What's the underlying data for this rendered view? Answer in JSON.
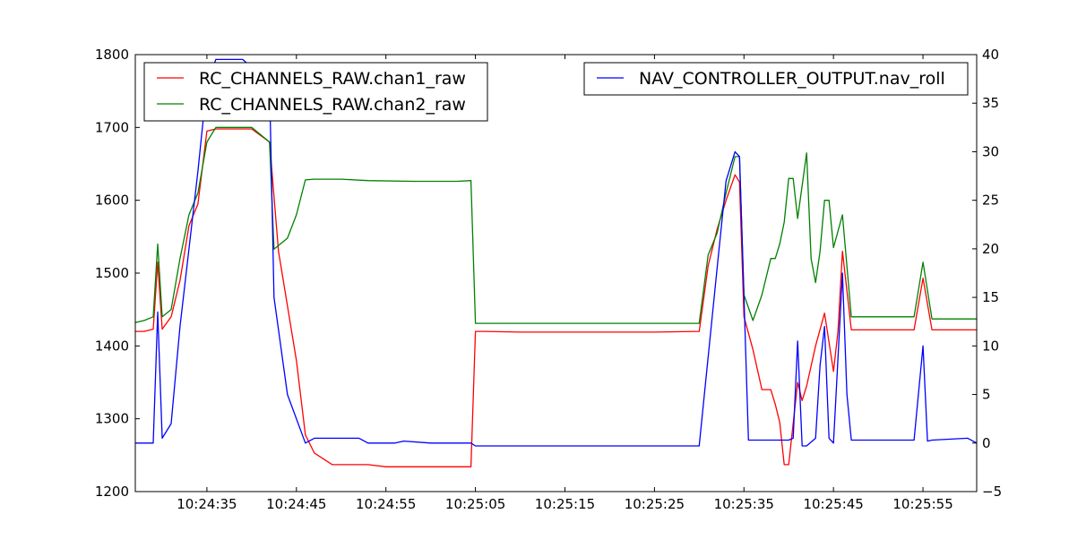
{
  "chart_data": {
    "type": "line",
    "title": "",
    "xlabel": "",
    "ylabel": "",
    "y2label": "",
    "xlim": [
      "10:24:27",
      "10:26:01"
    ],
    "ylim": [
      1200,
      1800
    ],
    "y2lim": [
      -5,
      40
    ],
    "x_ticks": [
      "10:24:35",
      "10:24:45",
      "10:24:55",
      "10:25:05",
      "10:25:15",
      "10:25:25",
      "10:25:35",
      "10:25:45",
      "10:25:55"
    ],
    "y_ticks": [
      "1200",
      "1300",
      "1400",
      "1500",
      "1600",
      "1700",
      "1800"
    ],
    "y2_ticks": [
      "−5",
      "0",
      "5",
      "10",
      "15",
      "20",
      "25",
      "30",
      "35",
      "40"
    ],
    "legend_left_placement": "upper-left",
    "legend_right_placement": "upper-right",
    "series": [
      {
        "name": "RC_CHANNELS_RAW.chan1_raw",
        "axis": "left",
        "color": "#ff0000",
        "x": [
          "10:24:27",
          "10:24:28",
          "10:24:29",
          "10:24:29.5",
          "10:24:30",
          "10:24:31",
          "10:24:32",
          "10:24:33",
          "10:24:34",
          "10:24:35",
          "10:24:36",
          "10:24:37",
          "10:24:40",
          "10:24:42",
          "10:24:43",
          "10:24:45",
          "10:24:46",
          "10:24:47",
          "10:24:49",
          "10:24:51",
          "10:24:53",
          "10:24:55",
          "10:24:57",
          "10:24:59",
          "10:25:01",
          "10:25:03",
          "10:25:04.5",
          "10:25:05",
          "10:25:06",
          "10:25:10",
          "10:25:15",
          "10:25:20",
          "10:25:25",
          "10:25:30",
          "10:25:31",
          "10:25:32",
          "10:25:33",
          "10:25:34",
          "10:25:34.5",
          "10:25:35",
          "10:25:36",
          "10:25:37",
          "10:25:38",
          "10:25:38.5",
          "10:25:39",
          "10:25:39.5",
          "10:25:40",
          "10:25:41",
          "10:25:41.5",
          "10:25:42",
          "10:25:43",
          "10:25:44",
          "10:25:45",
          "10:25:45.5",
          "10:25:46",
          "10:25:47",
          "10:25:50",
          "10:25:54",
          "10:25:55",
          "10:25:56",
          "10:26:01"
        ],
        "y": [
          1420,
          1420,
          1423,
          1515,
          1423,
          1440,
          1490,
          1565,
          1595,
          1695,
          1698,
          1698,
          1698,
          1680,
          1530,
          1380,
          1278,
          1253,
          1237,
          1237,
          1237,
          1234,
          1234,
          1234,
          1234,
          1234,
          1234,
          1420,
          1420,
          1419,
          1419,
          1419,
          1419,
          1420,
          1510,
          1560,
          1600,
          1635,
          1625,
          1440,
          1395,
          1340,
          1340,
          1320,
          1295,
          1237,
          1237,
          1350,
          1325,
          1345,
          1400,
          1445,
          1365,
          1420,
          1530,
          1422,
          1422,
          1422,
          1493,
          1422,
          1422
        ]
      },
      {
        "name": "RC_CHANNELS_RAW.chan2_raw",
        "axis": "left",
        "color": "#008000",
        "x": [
          "10:24:27",
          "10:24:28",
          "10:24:29",
          "10:24:29.5",
          "10:24:30",
          "10:24:31",
          "10:24:32",
          "10:24:33",
          "10:24:34",
          "10:24:35",
          "10:24:36",
          "10:24:37",
          "10:24:40",
          "10:24:42",
          "10:24:42.5",
          "10:24:44",
          "10:24:45",
          "10:24:46",
          "10:24:47",
          "10:24:50",
          "10:24:53",
          "10:24:58",
          "10:25:03",
          "10:25:04.5",
          "10:25:05",
          "10:25:10",
          "10:25:20",
          "10:25:30",
          "10:25:31",
          "10:25:32",
          "10:25:33",
          "10:25:34",
          "10:25:34.5",
          "10:25:35",
          "10:25:36",
          "10:25:37",
          "10:25:38",
          "10:25:38.5",
          "10:25:39",
          "10:25:39.5",
          "10:25:40",
          "10:25:40.5",
          "10:25:41",
          "10:25:42",
          "10:25:42.5",
          "10:25:43",
          "10:25:43.5",
          "10:25:44",
          "10:25:44.5",
          "10:25:45",
          "10:25:46",
          "10:25:47",
          "10:25:50",
          "10:25:54",
          "10:25:55",
          "10:25:56",
          "10:26:01"
        ],
        "y": [
          1432,
          1435,
          1440,
          1540,
          1440,
          1450,
          1520,
          1580,
          1610,
          1680,
          1700,
          1700,
          1700,
          1680,
          1533,
          1548,
          1580,
          1628,
          1629,
          1629,
          1627,
          1626,
          1626,
          1627,
          1431,
          1431,
          1431,
          1431,
          1525,
          1555,
          1610,
          1660,
          1660,
          1470,
          1435,
          1470,
          1520,
          1520,
          1540,
          1570,
          1630,
          1630,
          1575,
          1665,
          1520,
          1487,
          1530,
          1600,
          1600,
          1535,
          1580,
          1440,
          1440,
          1440,
          1515,
          1437,
          1437
        ]
      },
      {
        "name": "NAV_CONTROLLER_OUTPUT.nav_roll",
        "axis": "right",
        "color": "#0000ff",
        "x": [
          "10:24:27",
          "10:24:29",
          "10:24:29.5",
          "10:24:30",
          "10:24:31",
          "10:24:32",
          "10:24:33",
          "10:24:34",
          "10:24:35",
          "10:24:36",
          "10:24:37",
          "10:24:39",
          "10:24:42",
          "10:24:42.5",
          "10:24:44",
          "10:24:46",
          "10:24:47",
          "10:24:48",
          "10:24:52",
          "10:24:53",
          "10:24:56",
          "10:24:57",
          "10:25:00",
          "10:25:04.5",
          "10:25:05",
          "10:25:10",
          "10:25:20",
          "10:25:30",
          "10:25:32",
          "10:25:33",
          "10:25:34",
          "10:25:34.5",
          "10:25:35",
          "10:25:35.5",
          "10:25:36",
          "10:25:37",
          "10:25:39",
          "10:25:40",
          "10:25:40.5",
          "10:25:41",
          "10:25:41.5",
          "10:25:42",
          "10:25:43",
          "10:25:43.5",
          "10:25:44",
          "10:25:44.5",
          "10:25:45",
          "10:25:46",
          "10:25:46.5",
          "10:25:47",
          "10:25:50",
          "10:25:54",
          "10:25:55",
          "10:25:55.5",
          "10:25:56",
          "10:26:00",
          "10:26:01"
        ],
        "y": [
          0,
          0,
          13.5,
          0.5,
          2,
          12,
          20,
          28,
          37,
          39.5,
          39.5,
          39.5,
          37,
          15,
          5,
          0,
          0.5,
          0.5,
          0.5,
          0,
          0,
          0.2,
          0,
          0,
          -0.3,
          -0.3,
          -0.3,
          -0.3,
          18,
          27,
          30,
          29.5,
          15,
          0.3,
          0.3,
          0.3,
          0.3,
          0.3,
          0.5,
          10.5,
          -0.3,
          -0.3,
          0.5,
          8,
          12,
          0.5,
          0,
          17.5,
          5,
          0.3,
          0.3,
          0.3,
          10,
          0.2,
          0.3,
          0.5,
          0
        ]
      }
    ]
  }
}
